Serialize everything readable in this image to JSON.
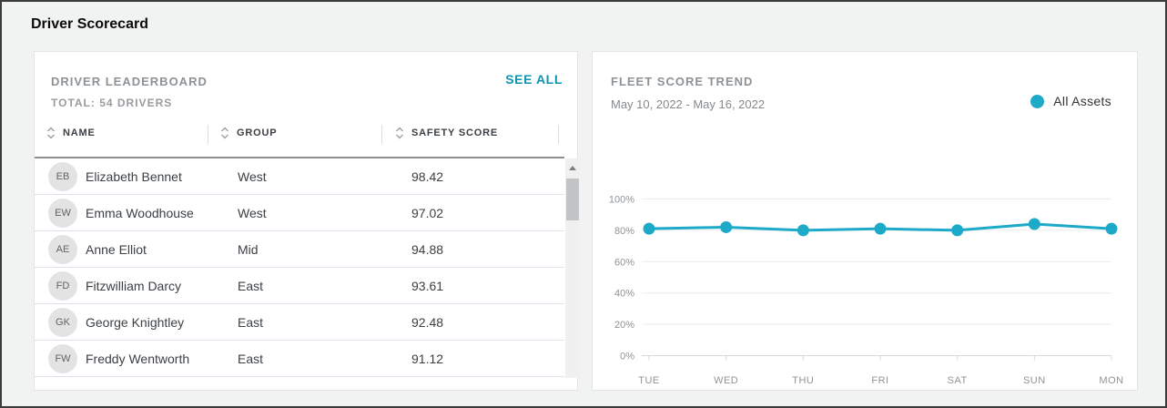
{
  "page": {
    "title": "Driver Scorecard"
  },
  "leaderboard": {
    "title": "DRIVER LEADERBOARD",
    "subtitle": "TOTAL: 54 DRIVERS",
    "see_all_label": "SEE ALL",
    "columns": [
      {
        "label": "NAME"
      },
      {
        "label": "GROUP"
      },
      {
        "label": "SAFETY SCORE"
      }
    ],
    "rows": [
      {
        "initials": "EB",
        "name": "Elizabeth Bennet",
        "group": "West",
        "score": "98.42"
      },
      {
        "initials": "EW",
        "name": "Emma Woodhouse",
        "group": "West",
        "score": "97.02"
      },
      {
        "initials": "AE",
        "name": "Anne Elliot",
        "group": "Mid",
        "score": "94.88"
      },
      {
        "initials": "FD",
        "name": "Fitzwilliam Darcy",
        "group": "East",
        "score": "93.61"
      },
      {
        "initials": "GK",
        "name": "George Knightley",
        "group": "East",
        "score": "92.48"
      },
      {
        "initials": "FW",
        "name": "Freddy Wentworth",
        "group": "East",
        "score": "91.12"
      }
    ]
  },
  "trend": {
    "title": "FLEET SCORE TREND",
    "date_range": "May 10, 2022 - May 16, 2022",
    "legend_label": "All Assets"
  },
  "chart_data": {
    "type": "line",
    "title": "FLEET SCORE TREND",
    "categories": [
      "TUE",
      "WED",
      "THU",
      "FRI",
      "SAT",
      "SUN",
      "MON"
    ],
    "series": [
      {
        "name": "All Assets",
        "values": [
          81,
          82,
          80,
          81,
          80,
          84,
          81
        ]
      }
    ],
    "xlabel": "",
    "ylabel": "",
    "ylim": [
      0,
      100
    ],
    "yticks": [
      "0%",
      "20%",
      "40%",
      "60%",
      "80%",
      "100%"
    ],
    "grid": true,
    "legend_position": "top-right"
  },
  "colors": {
    "accent_teal": "#1caac8",
    "link_teal": "#0d94b2",
    "grid_line": "#ebebeb",
    "axis_line": "#d9d9d9",
    "axis_text": "#8f9397"
  }
}
